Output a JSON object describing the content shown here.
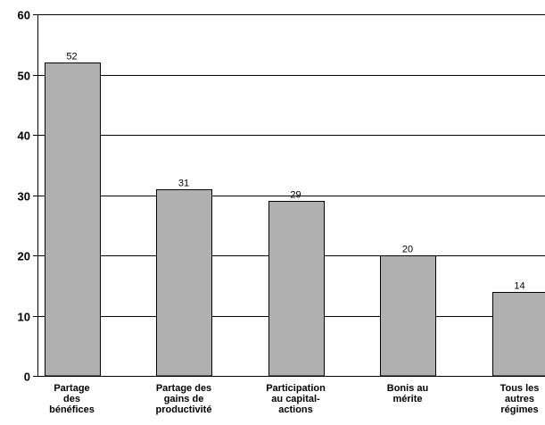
{
  "chart_data": {
    "type": "bar",
    "title": "",
    "xlabel": "",
    "ylabel": "",
    "ylim": [
      0,
      60
    ],
    "yticks": [
      0,
      10,
      20,
      30,
      40,
      50,
      60
    ],
    "grid": true,
    "legend": "none",
    "categories": [
      [
        "Partage",
        "des",
        "bénéfices"
      ],
      [
        "Partage des",
        "gains de",
        "productivité"
      ],
      [
        "Participation",
        "au capital-",
        "actions"
      ],
      [
        "Bonis au",
        "mérite"
      ],
      [
        "Tous les",
        "autres",
        "régimes"
      ]
    ],
    "values": [
      52,
      31,
      29,
      20,
      14
    ],
    "data_labels": [
      "52",
      "31",
      "29",
      "20",
      "14"
    ],
    "colors": {
      "bar_fill": "#b0b0b0",
      "bar_stroke": "#000000",
      "gridline": "#000000",
      "axis": "#000000",
      "text": "#000000"
    }
  }
}
